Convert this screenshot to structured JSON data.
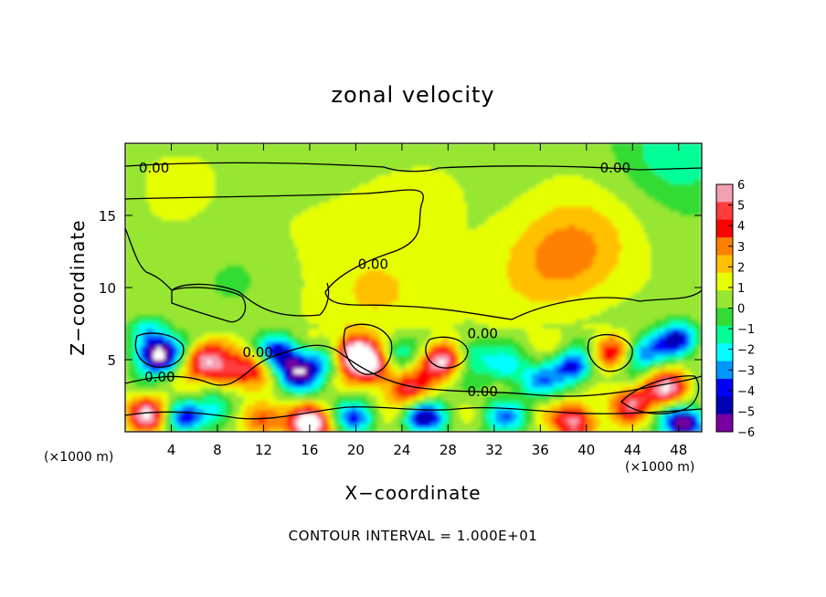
{
  "chart_data": {
    "type": "heatmap",
    "title": "zonal velocity",
    "xlabel": "X−coordinate",
    "ylabel": "Z−coordinate",
    "x_unit_left": "(×1000 m)",
    "x_unit_right": "(×1000 m)",
    "xlim": [
      0,
      50
    ],
    "ylim": [
      0,
      20
    ],
    "x_ticks": [
      4,
      8,
      12,
      16,
      20,
      24,
      28,
      32,
      36,
      40,
      44,
      48
    ],
    "y_ticks": [
      5,
      10,
      15
    ],
    "colorbar": {
      "min": -6,
      "max": 6,
      "tick_labels": [
        "6",
        "5",
        "4",
        "3",
        "2",
        "1",
        "0",
        "−1",
        "−2",
        "−3",
        "−4",
        "−5",
        "−6"
      ],
      "tick_values": [
        6,
        5,
        4,
        3,
        2,
        1,
        0,
        -1,
        -2,
        -3,
        -4,
        -5,
        -6
      ],
      "colors": [
        "#f4a0b4",
        "#ff3c3c",
        "#ff0000",
        "#ff8000",
        "#ffc000",
        "#e6ff00",
        "#96e632",
        "#32dc32",
        "#00ff96",
        "#00ffff",
        "#0096ff",
        "#0000ff",
        "#0000b4",
        "#7800a0"
      ]
    },
    "contour_labels": [
      {
        "text": "0.00",
        "x": 2.5,
        "y": 18.3
      },
      {
        "text": "0.00",
        "x": 42.5,
        "y": 18.3
      },
      {
        "text": "0.00",
        "x": 21.5,
        "y": 11.6
      },
      {
        "text": "0.00",
        "x": 11.5,
        "y": 5.5
      },
      {
        "text": "0.00",
        "x": 3.0,
        "y": 3.8
      },
      {
        "text": "0.00",
        "x": 31.0,
        "y": 6.8
      },
      {
        "text": "0.00",
        "x": 31.0,
        "y": 2.8
      }
    ],
    "features": [
      {
        "x": 3,
        "y": 5.3,
        "v": -7
      },
      {
        "x": 2,
        "y": 6.8,
        "v": -3
      },
      {
        "x": 7,
        "y": 5,
        "v": 5
      },
      {
        "x": 9,
        "y": 4,
        "v": 3
      },
      {
        "x": 11,
        "y": 4.5,
        "v": 3
      },
      {
        "x": 13.5,
        "y": 5.5,
        "v": -5
      },
      {
        "x": 15,
        "y": 4,
        "v": -5
      },
      {
        "x": 17,
        "y": 5,
        "v": -3
      },
      {
        "x": 20,
        "y": 5.5,
        "v": 7
      },
      {
        "x": 21.5,
        "y": 4.5,
        "v": 5
      },
      {
        "x": 23.5,
        "y": 5.5,
        "v": -3
      },
      {
        "x": 24.5,
        "y": 3,
        "v": 4
      },
      {
        "x": 27.5,
        "y": 5,
        "v": 6
      },
      {
        "x": 30,
        "y": 5.5,
        "v": -3
      },
      {
        "x": 33,
        "y": 4.5,
        "v": -3
      },
      {
        "x": 36,
        "y": 3.5,
        "v": -3
      },
      {
        "x": 39,
        "y": 4.5,
        "v": -5
      },
      {
        "x": 42,
        "y": 5.5,
        "v": 4
      },
      {
        "x": 45,
        "y": 5.5,
        "v": -4
      },
      {
        "x": 48,
        "y": 6.5,
        "v": -5
      },
      {
        "x": 47,
        "y": 3,
        "v": 5
      },
      {
        "x": 44,
        "y": 2,
        "v": 4
      },
      {
        "x": 2,
        "y": 1.2,
        "v": 5
      },
      {
        "x": 5,
        "y": 1,
        "v": -4
      },
      {
        "x": 8,
        "y": 1.5,
        "v": -3
      },
      {
        "x": 12,
        "y": 1,
        "v": 4
      },
      {
        "x": 16,
        "y": 0.5,
        "v": 7
      },
      {
        "x": 20,
        "y": 1,
        "v": -4
      },
      {
        "x": 26,
        "y": 1,
        "v": -5
      },
      {
        "x": 33,
        "y": 1,
        "v": -3
      },
      {
        "x": 39,
        "y": 0.8,
        "v": 5
      },
      {
        "x": 48.5,
        "y": 0.6,
        "v": -6
      },
      {
        "x": 39,
        "y": 13,
        "v": 1.6
      },
      {
        "x": 37,
        "y": 11,
        "v": 1.3
      },
      {
        "x": 22,
        "y": 9.5,
        "v": 1.5
      },
      {
        "x": 15,
        "y": 14,
        "v": 0.6
      },
      {
        "x": 28,
        "y": 16,
        "v": 0.5
      },
      {
        "x": 5,
        "y": 18,
        "v": 0.3
      },
      {
        "x": 48,
        "y": 19.5,
        "v": -2
      },
      {
        "x": 10,
        "y": 10.5,
        "v": -0.8
      },
      {
        "x": 3,
        "y": 9,
        "v": 0.4
      }
    ]
  },
  "footer": "CONTOUR INTERVAL =  1.000E+01"
}
